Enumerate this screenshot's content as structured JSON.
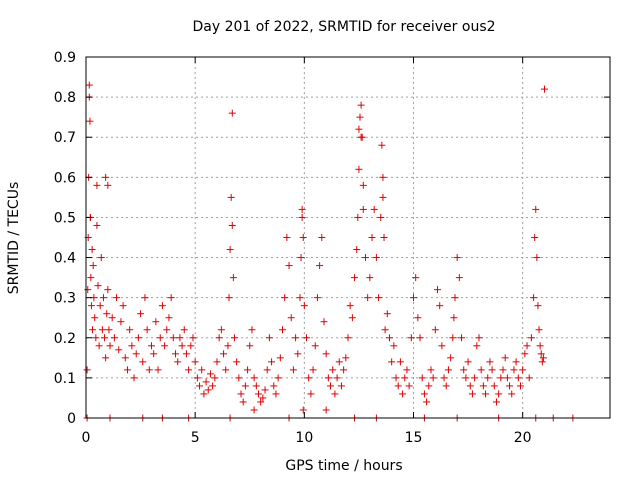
{
  "chart_data": {
    "type": "scatter",
    "title": "Day 201 of 2022, SRMTID for receiver ous2",
    "xlabel": "GPS time / hours",
    "ylabel": "SRMTID / TECUs",
    "xlim": [
      0,
      24
    ],
    "ylim": [
      0,
      0.9
    ],
    "x_ticks": [
      0,
      5,
      10,
      15,
      20
    ],
    "x_tick_labels": [
      "0",
      "5",
      "10",
      "15",
      "20"
    ],
    "y_ticks": [
      0,
      0.1,
      0.2,
      0.3,
      0.4,
      0.5,
      0.6,
      0.7,
      0.8,
      0.9
    ],
    "y_tick_labels": [
      "0",
      "0.1",
      "0.2",
      "0.3",
      "0.4",
      "0.5",
      "0.6",
      "0.7",
      "0.8",
      "0.9"
    ],
    "grid": true,
    "marker": "+",
    "color": "#e00000",
    "series": [
      {
        "name": "SRMTID",
        "x": [
          0.05,
          0.08,
          0.1,
          0.12,
          0.15,
          0.18,
          0.2,
          0.22,
          0.25,
          0.28,
          0.3,
          0.33,
          0.36,
          0.4,
          0.45,
          0.5,
          0.55,
          0.6,
          0.65,
          0.7,
          0.75,
          0.8,
          0.85,
          0.9,
          0.95,
          1.0,
          1.05,
          1.1,
          1.2,
          1.3,
          1.4,
          1.5,
          1.6,
          1.7,
          1.8,
          1.9,
          2.0,
          2.1,
          2.2,
          2.3,
          2.4,
          2.5,
          2.6,
          2.7,
          2.8,
          2.9,
          3.0,
          3.1,
          3.2,
          3.3,
          3.4,
          3.5,
          3.6,
          3.7,
          3.8,
          3.9,
          4.0,
          4.1,
          4.2,
          4.3,
          4.4,
          4.5,
          4.6,
          4.7,
          4.8,
          4.9,
          5.0,
          5.1,
          5.2,
          5.3,
          5.4,
          5.5,
          5.6,
          5.7,
          5.8,
          5.9,
          6.0,
          6.1,
          6.2,
          6.3,
          6.4,
          6.5,
          6.55,
          6.6,
          6.65,
          6.7,
          6.75,
          6.8,
          6.9,
          7.0,
          7.1,
          7.2,
          7.3,
          7.4,
          7.5,
          7.6,
          7.7,
          7.8,
          7.9,
          8.0,
          8.1,
          8.2,
          8.3,
          8.4,
          8.5,
          8.6,
          8.7,
          8.8,
          8.9,
          9.0,
          9.1,
          9.2,
          9.3,
          9.4,
          9.5,
          9.6,
          9.7,
          9.8,
          9.85,
          9.9,
          9.95,
          10.0,
          10.1,
          10.2,
          10.3,
          10.4,
          10.5,
          10.6,
          10.7,
          10.8,
          10.9,
          11.0,
          11.1,
          11.2,
          11.3,
          11.4,
          11.5,
          11.6,
          11.7,
          11.8,
          11.9,
          12.0,
          12.1,
          12.2,
          12.3,
          12.4,
          12.45,
          12.5,
          12.55,
          12.6,
          12.65,
          12.7,
          12.8,
          12.9,
          13.0,
          13.1,
          13.2,
          13.3,
          13.4,
          13.5,
          13.55,
          13.6,
          13.65,
          13.7,
          13.8,
          13.9,
          14.0,
          14.1,
          14.2,
          14.3,
          14.4,
          14.5,
          14.6,
          14.7,
          14.8,
          14.9,
          15.0,
          15.1,
          15.2,
          15.3,
          15.4,
          15.5,
          15.6,
          15.7,
          15.8,
          15.9,
          16.0,
          16.1,
          16.2,
          16.3,
          16.4,
          16.5,
          16.6,
          16.7,
          16.8,
          16.85,
          16.9,
          17.0,
          17.1,
          17.2,
          17.3,
          17.4,
          17.5,
          17.6,
          17.7,
          17.8,
          17.9,
          18.0,
          18.1,
          18.2,
          18.3,
          18.4,
          18.5,
          18.6,
          18.7,
          18.8,
          18.9,
          19.0,
          19.1,
          19.2,
          19.3,
          19.4,
          19.5,
          19.6,
          19.7,
          19.8,
          19.9,
          20.0,
          20.1,
          20.2,
          20.3,
          20.4,
          20.5,
          20.55,
          20.6,
          20.65,
          20.7,
          20.75,
          20.8,
          20.85,
          20.9,
          20.95,
          21.0,
          0.15,
          0.2,
          0.5,
          0.9,
          1.0,
          6.7,
          12.5,
          12.6,
          12.7,
          13.6,
          9.9,
          9.95,
          7.7,
          11.0,
          18.9,
          21.4,
          22.3,
          0.05,
          1.1,
          2.6,
          3.5,
          4.7,
          6.6,
          9.3,
          12.3,
          13.3,
          15.5,
          17.0,
          20.6
        ],
        "y": [
          0.12,
          0.32,
          0.45,
          0.6,
          0.83,
          0.74,
          0.5,
          0.35,
          0.28,
          0.42,
          0.22,
          0.38,
          0.3,
          0.25,
          0.2,
          0.48,
          0.33,
          0.18,
          0.28,
          0.4,
          0.22,
          0.3,
          0.2,
          0.15,
          0.26,
          0.32,
          0.22,
          0.18,
          0.25,
          0.2,
          0.3,
          0.17,
          0.24,
          0.28,
          0.15,
          0.12,
          0.22,
          0.18,
          0.1,
          0.16,
          0.2,
          0.26,
          0.14,
          0.3,
          0.22,
          0.12,
          0.18,
          0.16,
          0.24,
          0.12,
          0.2,
          0.28,
          0.18,
          0.22,
          0.25,
          0.3,
          0.2,
          0.16,
          0.14,
          0.2,
          0.18,
          0.22,
          0.16,
          0.12,
          0.18,
          0.2,
          0.14,
          0.1,
          0.08,
          0.12,
          0.06,
          0.09,
          0.07,
          0.11,
          0.08,
          0.1,
          0.14,
          0.2,
          0.22,
          0.16,
          0.12,
          0.18,
          0.3,
          0.42,
          0.55,
          0.48,
          0.35,
          0.2,
          0.14,
          0.1,
          0.06,
          0.04,
          0.08,
          0.12,
          0.18,
          0.22,
          0.1,
          0.08,
          0.06,
          0.04,
          0.05,
          0.07,
          0.12,
          0.2,
          0.14,
          0.08,
          0.06,
          0.1,
          0.15,
          0.22,
          0.3,
          0.45,
          0.38,
          0.25,
          0.12,
          0.2,
          0.16,
          0.3,
          0.4,
          0.52,
          0.45,
          0.28,
          0.2,
          0.1,
          0.06,
          0.12,
          0.18,
          0.3,
          0.38,
          0.45,
          0.24,
          0.16,
          0.1,
          0.08,
          0.12,
          0.06,
          0.1,
          0.14,
          0.08,
          0.12,
          0.15,
          0.2,
          0.28,
          0.25,
          0.35,
          0.42,
          0.5,
          0.62,
          0.75,
          0.78,
          0.7,
          0.58,
          0.4,
          0.3,
          0.35,
          0.45,
          0.52,
          0.4,
          0.3,
          0.5,
          0.68,
          0.6,
          0.45,
          0.22,
          0.26,
          0.2,
          0.14,
          0.18,
          0.1,
          0.08,
          0.14,
          0.06,
          0.1,
          0.12,
          0.08,
          0.2,
          0.3,
          0.35,
          0.25,
          0.2,
          0.1,
          0.06,
          0.04,
          0.08,
          0.12,
          0.1,
          0.22,
          0.32,
          0.28,
          0.18,
          0.1,
          0.08,
          0.12,
          0.15,
          0.2,
          0.25,
          0.3,
          0.4,
          0.35,
          0.2,
          0.12,
          0.1,
          0.14,
          0.08,
          0.06,
          0.1,
          0.18,
          0.2,
          0.12,
          0.08,
          0.06,
          0.1,
          0.14,
          0.12,
          0.08,
          0.04,
          0.06,
          0.1,
          0.12,
          0.15,
          0.1,
          0.08,
          0.06,
          0.12,
          0.14,
          0.1,
          0.08,
          0.12,
          0.16,
          0.18,
          0.1,
          0.2,
          0.3,
          0.45,
          0.52,
          0.4,
          0.28,
          0.22,
          0.18,
          0.16,
          0.14,
          0.15,
          0.82,
          0.8,
          0.5,
          0.58,
          0.6,
          0.58,
          0.76,
          0.72,
          0.7,
          0.52,
          0.55,
          0.5,
          0.02,
          0.02,
          0.02,
          0.0,
          0.0,
          0.0,
          0.0,
          0.0,
          0.0,
          0.0,
          0.0,
          0.0,
          0.0,
          0.0,
          0.0,
          0.0,
          0.0,
          0.0
        ]
      }
    ]
  }
}
